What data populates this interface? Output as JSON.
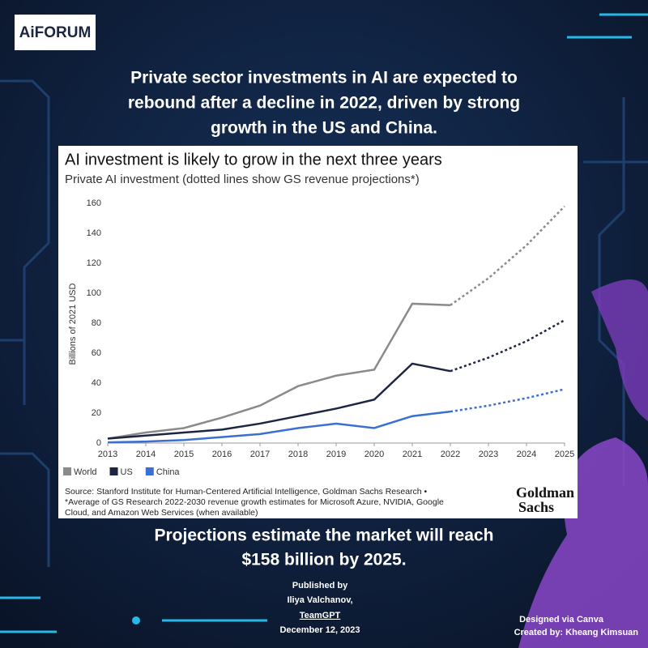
{
  "logo": "AiFORUM",
  "headline": [
    "Private sector investments in AI are expected to",
    "rebound after a decline in 2022, driven by strong",
    "growth in the US and China."
  ],
  "chart_data": {
    "type": "line",
    "title": "AI investment is likely to grow in the next three years",
    "subtitle": "Private AI investment (dotted lines show GS revenue projections*)",
    "y_label": "Billions of 2021 USD",
    "x": [
      2013,
      2014,
      2015,
      2016,
      2017,
      2018,
      2019,
      2020,
      2021,
      2022,
      2023,
      2024,
      2025
    ],
    "series": [
      {
        "name": "World",
        "color": "#8a8a8a",
        "values": [
          3,
          7,
          10,
          17,
          25,
          38,
          45,
          49,
          93,
          92,
          110,
          132,
          158
        ]
      },
      {
        "name": "US",
        "color": "#1c2541",
        "values": [
          3,
          5,
          7,
          9,
          13,
          18,
          23,
          29,
          53,
          48,
          57,
          68,
          82
        ]
      },
      {
        "name": "China",
        "color": "#3b6fd1",
        "values": [
          0.5,
          1,
          2,
          4,
          6,
          10,
          13,
          10,
          18,
          21,
          25,
          30,
          36
        ]
      }
    ],
    "projection_start": 2022,
    "xlim": [
      2013,
      2025
    ],
    "xticks": [
      2013,
      2014,
      2015,
      2016,
      2017,
      2018,
      2019,
      2020,
      2021,
      2022,
      2023,
      2024,
      2025
    ],
    "ylim": [
      0,
      160
    ],
    "yticks": [
      0,
      20,
      40,
      60,
      80,
      100,
      120,
      140,
      160
    ],
    "grid": false,
    "legend": "bottom-left",
    "source": [
      "Source: Stanford Institute for Human-Centered Artificial Intelligence, Goldman Sachs Research •",
      "*Average of GS Research 2022-2030 revenue growth estimates for Microsoft Azure, NVIDIA, Google",
      "Cloud, and Amazon Web Services (when available)"
    ],
    "brand": [
      "Goldman",
      "Sachs"
    ]
  },
  "conclusion": [
    "Projections estimate the market will reach",
    "$158 billion by 2025."
  ],
  "published": [
    "Published by",
    "Iliya Valchanov,",
    "TeamGPT",
    "December 12, 2023"
  ],
  "credits": [
    "Designed via Canva",
    "Created by: Kheang Kimsuan"
  ]
}
